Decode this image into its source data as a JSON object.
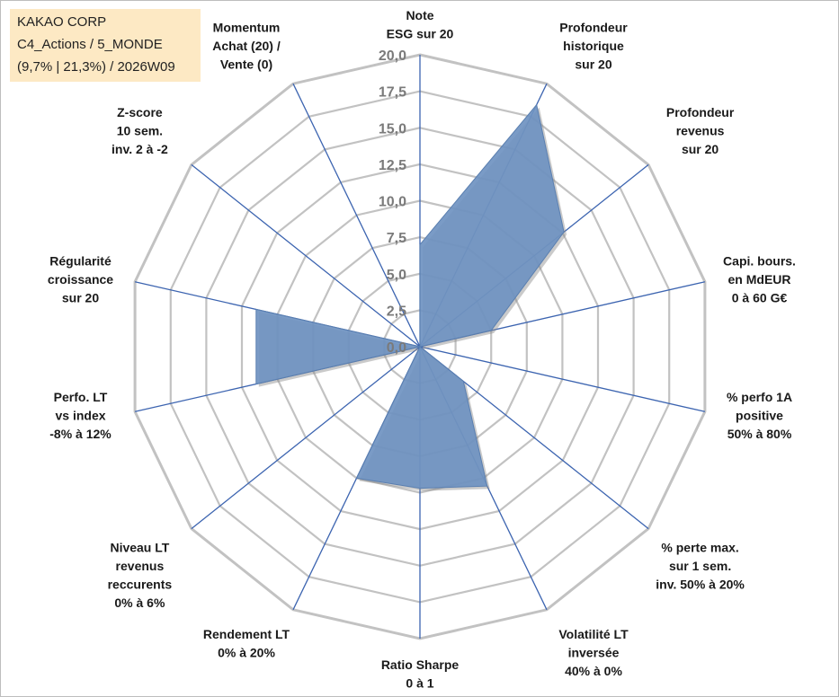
{
  "info_box": {
    "line1": "KAKAO CORP",
    "line2": "C4_Actions / 5_MONDE",
    "line3": "(9,7% | 21,3%) / 2026W09"
  },
  "chart_data": {
    "type": "radar",
    "title": "",
    "range": [
      0,
      20
    ],
    "ticks": [
      "0,0",
      "2,5",
      "5,0",
      "7,5",
      "10,0",
      "12,5",
      "15,0",
      "17,5",
      "20,0"
    ],
    "axes": [
      {
        "label": [
          "Note",
          "ESG sur 20"
        ]
      },
      {
        "label": [
          "Profondeur",
          "historique",
          "sur 20"
        ]
      },
      {
        "label": [
          "Profondeur",
          "revenus",
          "sur 20"
        ]
      },
      {
        "label": [
          "Capi. bours.",
          "en MdEUR",
          "0 à 60 G€"
        ]
      },
      {
        "label": [
          "% perfo 1A",
          "positive",
          "50% à 80%"
        ]
      },
      {
        "label": [
          "% perte max.",
          "sur 1 sem.",
          "inv. 50% à 20%"
        ]
      },
      {
        "label": [
          "Volatilité LT",
          "inversée",
          "40% à 0%"
        ]
      },
      {
        "label": [
          "Ratio Sharpe",
          "0 à 1"
        ]
      },
      {
        "label": [
          "Rendement LT",
          "0% à 20%"
        ]
      },
      {
        "label": [
          "Niveau LT",
          "revenus",
          "reccurents",
          "0% à 6%"
        ]
      },
      {
        "label": [
          "Perfo. LT",
          "vs index",
          "-8% à 12%"
        ]
      },
      {
        "label": [
          "Régularité",
          "croissance",
          "sur 20"
        ]
      },
      {
        "label": [
          "Z-score",
          "10 sem.",
          "inv. 2 à -2"
        ]
      },
      {
        "label": [
          "Momentum",
          "Achat (20) /",
          "Vente (0)"
        ]
      }
    ],
    "series": [
      {
        "name": "KAKAO CORP",
        "color": "#6f93c1",
        "values": [
          7.0,
          18.4,
          12.6,
          5.0,
          0.0,
          3.8,
          10.6,
          9.7,
          10.0,
          0.0,
          11.5,
          11.5,
          0.0,
          0.0
        ]
      }
    ],
    "colors": {
      "grid": "#c2c2c2",
      "spoke": "#3c64b0",
      "fill": "#6f93c1",
      "fill_edge": "#5a7fb0"
    }
  }
}
